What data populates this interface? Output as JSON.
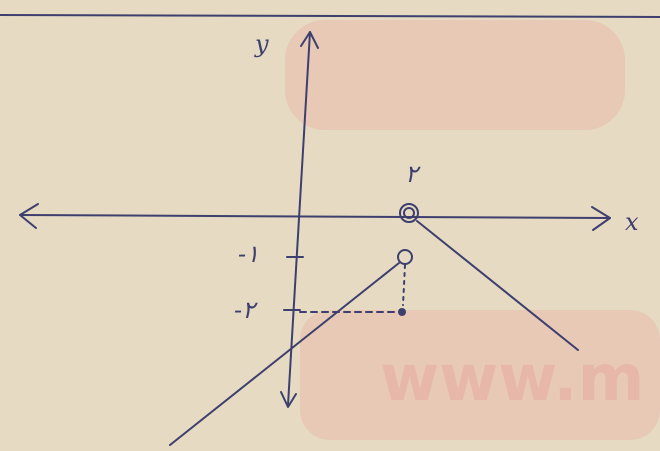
{
  "labels": {
    "y_axis": "y",
    "x_axis": "x",
    "x_point": "۲",
    "y_tick_1": "-۱",
    "y_tick_2": "-۲"
  },
  "watermark": "www.m"
}
